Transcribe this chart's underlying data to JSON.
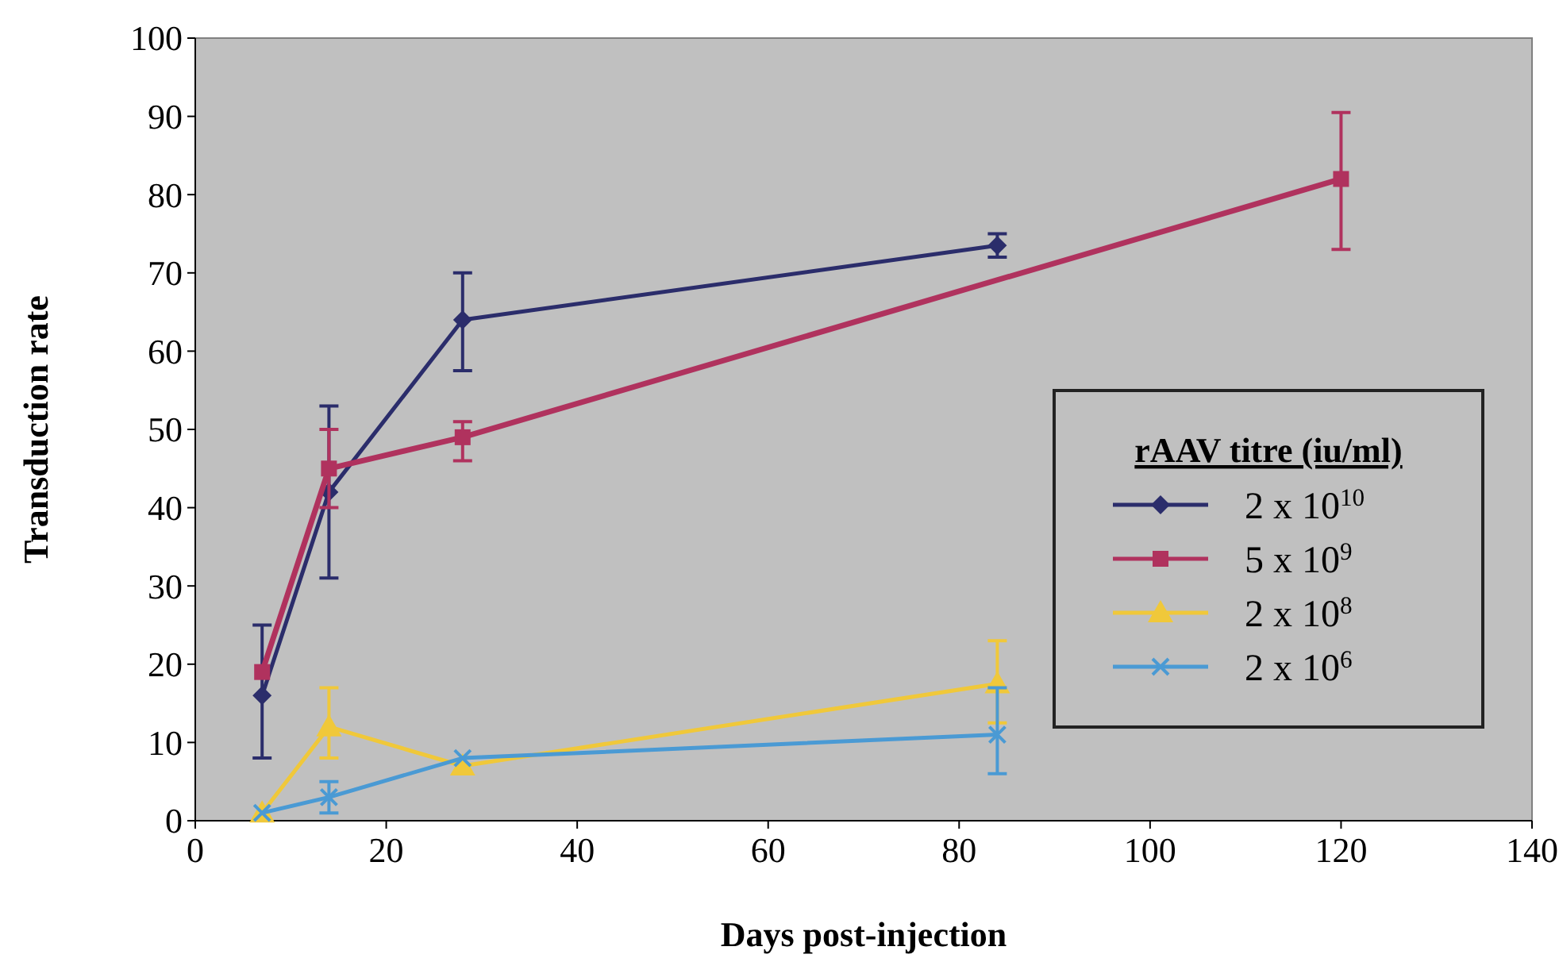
{
  "chart_data": {
    "type": "line",
    "xlabel": "Days post-injection",
    "ylabel": "Transduction rate",
    "legend_title": "rAAV titre (iu/ml)",
    "legend": "right",
    "grid": false,
    "xlim": [
      0,
      140
    ],
    "xticks": [
      0,
      20,
      40,
      60,
      80,
      100,
      120,
      140
    ],
    "ylim": [
      0,
      100
    ],
    "yticks": [
      0,
      10,
      20,
      30,
      40,
      50,
      60,
      70,
      80,
      90,
      100
    ],
    "series": [
      {
        "name": "2 x 10$^{10}$",
        "color": "#2b2d6b",
        "marker": "diamond",
        "x": [
          7,
          14,
          28,
          84
        ],
        "values": [
          16,
          42,
          64,
          73.5
        ],
        "errors": [
          [
            8,
            25
          ],
          [
            31,
            53
          ],
          [
            57.5,
            70
          ],
          [
            72,
            75
          ]
        ]
      },
      {
        "name": "5 x 10$^{9}$",
        "color": "#b0325e",
        "marker": "square",
        "x": [
          7,
          14,
          28,
          120
        ],
        "values": [
          19,
          45,
          49,
          82
        ],
        "errors": [
          null,
          [
            40,
            50
          ],
          [
            46,
            51
          ],
          [
            73,
            90.5
          ]
        ]
      },
      {
        "name": "2 x 10$^{8}$",
        "color": "#f0c83a",
        "marker": "triangle",
        "x": [
          7,
          14,
          28,
          84
        ],
        "values": [
          1,
          12,
          7,
          17.5
        ],
        "errors": [
          null,
          [
            8,
            17
          ],
          null,
          [
            12.5,
            23
          ]
        ]
      },
      {
        "name": "2 x 10$^{6}$",
        "color": "#4a9ad4",
        "marker": "cross",
        "x": [
          7,
          14,
          28,
          84
        ],
        "values": [
          1,
          3,
          8,
          11
        ],
        "errors": [
          null,
          [
            1,
            5
          ],
          null,
          [
            6,
            17
          ]
        ]
      }
    ]
  }
}
